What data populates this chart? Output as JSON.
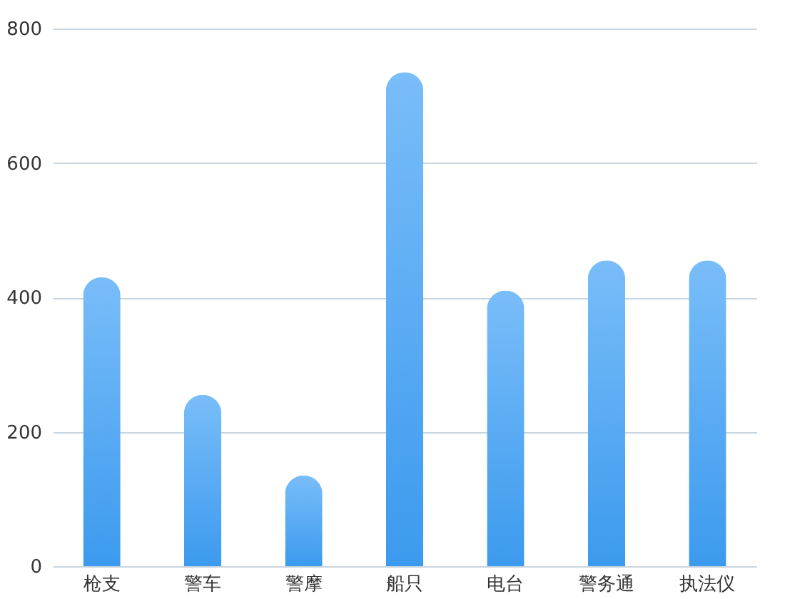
{
  "chart_data": {
    "type": "bar",
    "categories": [
      "枪支",
      "警车",
      "警摩",
      "船只",
      "电台",
      "警务通",
      "执法仪"
    ],
    "values": [
      430,
      255,
      135,
      735,
      410,
      455,
      455
    ],
    "color": "#58adf7",
    "ylim": [
      0,
      800
    ],
    "yticks": [
      0,
      200,
      400,
      600,
      800
    ],
    "grid": "y"
  }
}
